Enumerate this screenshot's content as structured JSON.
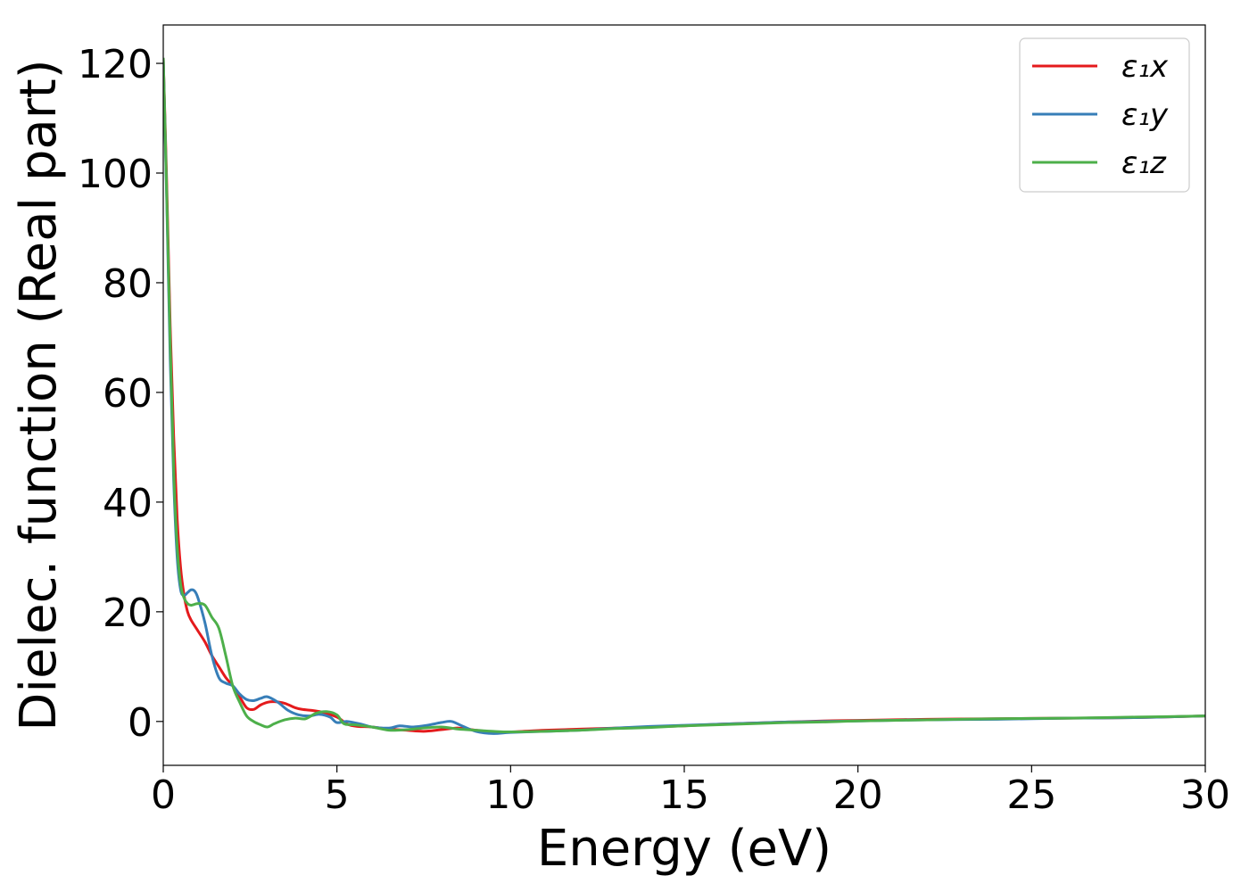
{
  "chart_data": {
    "type": "line",
    "title": "",
    "xlabel": "Energy (eV)",
    "ylabel": "Dielec. function (Real part)",
    "xlim": [
      0,
      30
    ],
    "ylim": [
      -8,
      127
    ],
    "xticks": [
      0,
      5,
      10,
      15,
      20,
      25,
      30
    ],
    "yticks": [
      0,
      20,
      40,
      60,
      80,
      100,
      120
    ],
    "grid": false,
    "legend_position": "top-right",
    "series": [
      {
        "name": "ε₁x",
        "color": "#e41a1c",
        "points": [
          [
            0,
            121
          ],
          [
            0.1,
            98
          ],
          [
            0.2,
            72
          ],
          [
            0.3,
            52
          ],
          [
            0.4,
            37
          ],
          [
            0.5,
            28
          ],
          [
            0.6,
            23
          ],
          [
            0.7,
            20
          ],
          [
            0.8,
            18.5
          ],
          [
            1.0,
            16.5
          ],
          [
            1.2,
            14.5
          ],
          [
            1.4,
            12
          ],
          [
            1.6,
            10
          ],
          [
            1.8,
            8
          ],
          [
            2.0,
            6.5
          ],
          [
            2.2,
            4.5
          ],
          [
            2.4,
            2.5
          ],
          [
            2.6,
            2.2
          ],
          [
            2.8,
            3.0
          ],
          [
            3.0,
            3.5
          ],
          [
            3.2,
            3.6
          ],
          [
            3.5,
            3.3
          ],
          [
            3.8,
            2.5
          ],
          [
            4.0,
            2.2
          ],
          [
            4.5,
            1.8
          ],
          [
            5.0,
            0.8
          ],
          [
            5.3,
            -0.5
          ],
          [
            5.6,
            -0.9
          ],
          [
            6.0,
            -1.0
          ],
          [
            6.5,
            -1.4
          ],
          [
            7.0,
            -1.6
          ],
          [
            7.5,
            -1.8
          ],
          [
            8.0,
            -1.5
          ],
          [
            8.5,
            -1.2
          ],
          [
            9.0,
            -1.6
          ],
          [
            9.5,
            -1.9
          ],
          [
            10,
            -1.9
          ],
          [
            11,
            -1.6
          ],
          [
            12,
            -1.4
          ],
          [
            13,
            -1.2
          ],
          [
            14,
            -1.0
          ],
          [
            15,
            -0.8
          ],
          [
            16,
            -0.5
          ],
          [
            17,
            -0.3
          ],
          [
            18,
            -0.1
          ],
          [
            19,
            0.1
          ],
          [
            20,
            0.2
          ],
          [
            22,
            0.4
          ],
          [
            24,
            0.5
          ],
          [
            26,
            0.6
          ],
          [
            28,
            0.7
          ],
          [
            30,
            1.0
          ]
        ]
      },
      {
        "name": "ε₁y",
        "color": "#377eb8",
        "points": [
          [
            0,
            121
          ],
          [
            0.1,
            95
          ],
          [
            0.2,
            66
          ],
          [
            0.3,
            44
          ],
          [
            0.4,
            30
          ],
          [
            0.5,
            24
          ],
          [
            0.6,
            23
          ],
          [
            0.7,
            23.5
          ],
          [
            0.8,
            24
          ],
          [
            0.9,
            23.8
          ],
          [
            1.0,
            22.5
          ],
          [
            1.2,
            18
          ],
          [
            1.4,
            12
          ],
          [
            1.6,
            8
          ],
          [
            1.8,
            7
          ],
          [
            2.0,
            6.5
          ],
          [
            2.2,
            5
          ],
          [
            2.4,
            4
          ],
          [
            2.6,
            3.8
          ],
          [
            2.8,
            4.2
          ],
          [
            3.0,
            4.5
          ],
          [
            3.3,
            3.5
          ],
          [
            3.6,
            2
          ],
          [
            3.9,
            1.2
          ],
          [
            4.2,
            1.0
          ],
          [
            4.5,
            1.3
          ],
          [
            4.8,
            0.8
          ],
          [
            5.0,
            -0.2
          ],
          [
            5.3,
            0.0
          ],
          [
            5.7,
            -0.5
          ],
          [
            6.0,
            -1.0
          ],
          [
            6.5,
            -1.2
          ],
          [
            6.8,
            -0.8
          ],
          [
            7.2,
            -1.0
          ],
          [
            7.6,
            -0.7
          ],
          [
            8.0,
            -0.2
          ],
          [
            8.3,
            0.0
          ],
          [
            8.6,
            -0.8
          ],
          [
            9.0,
            -1.8
          ],
          [
            9.5,
            -2.2
          ],
          [
            10,
            -2.0
          ],
          [
            11,
            -1.8
          ],
          [
            12,
            -1.6
          ],
          [
            13,
            -1.2
          ],
          [
            14,
            -0.9
          ],
          [
            15,
            -0.7
          ],
          [
            16,
            -0.5
          ],
          [
            17,
            -0.3
          ],
          [
            18,
            -0.1
          ],
          [
            19,
            0.0
          ],
          [
            20,
            0.1
          ],
          [
            22,
            0.3
          ],
          [
            24,
            0.4
          ],
          [
            26,
            0.6
          ],
          [
            28,
            0.7
          ],
          [
            30,
            1.0
          ]
        ]
      },
      {
        "name": "ε₁z",
        "color": "#4daf4a",
        "points": [
          [
            0,
            121
          ],
          [
            0.1,
            96
          ],
          [
            0.2,
            69
          ],
          [
            0.3,
            46
          ],
          [
            0.4,
            32
          ],
          [
            0.5,
            25
          ],
          [
            0.6,
            22.5
          ],
          [
            0.7,
            21.5
          ],
          [
            0.8,
            21.2
          ],
          [
            1.0,
            21.5
          ],
          [
            1.2,
            21.2
          ],
          [
            1.4,
            19
          ],
          [
            1.6,
            17
          ],
          [
            1.8,
            12
          ],
          [
            2.0,
            6.5
          ],
          [
            2.2,
            3.5
          ],
          [
            2.4,
            1.0
          ],
          [
            2.6,
            0.0
          ],
          [
            2.8,
            -0.6
          ],
          [
            3.0,
            -1.0
          ],
          [
            3.2,
            -0.4
          ],
          [
            3.5,
            0.3
          ],
          [
            3.8,
            0.6
          ],
          [
            4.1,
            0.5
          ],
          [
            4.4,
            1.5
          ],
          [
            4.7,
            1.8
          ],
          [
            5.0,
            1.2
          ],
          [
            5.2,
            -0.4
          ],
          [
            5.5,
            -0.6
          ],
          [
            6.0,
            -1.0
          ],
          [
            6.5,
            -1.6
          ],
          [
            7.0,
            -1.5
          ],
          [
            7.5,
            -1.2
          ],
          [
            8.0,
            -1.0
          ],
          [
            8.5,
            -1.4
          ],
          [
            9.0,
            -1.6
          ],
          [
            9.5,
            -1.8
          ],
          [
            10,
            -1.9
          ],
          [
            11,
            -1.8
          ],
          [
            12,
            -1.6
          ],
          [
            13,
            -1.3
          ],
          [
            14,
            -1.1
          ],
          [
            15,
            -0.8
          ],
          [
            16,
            -0.6
          ],
          [
            17,
            -0.4
          ],
          [
            18,
            -0.2
          ],
          [
            19,
            -0.1
          ],
          [
            20,
            0.1
          ],
          [
            22,
            0.3
          ],
          [
            24,
            0.5
          ],
          [
            26,
            0.6
          ],
          [
            28,
            0.8
          ],
          [
            30,
            1.0
          ]
        ]
      }
    ]
  }
}
